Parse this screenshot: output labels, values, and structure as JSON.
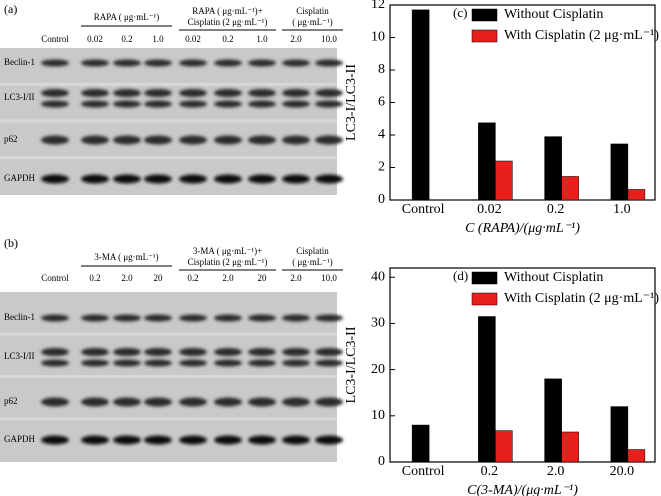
{
  "blots": [
    {
      "label": "(a)",
      "groups": [
        [
          "RAPA ( μg·mL⁻¹)"
        ],
        [
          "RAPA ( μg·mL⁻¹)+",
          "Cisplatin (2 μg·mL⁻¹)"
        ],
        [
          "Cisplatin",
          "( μg·mL⁻¹)"
        ]
      ],
      "lanes": [
        "Control",
        "0.02",
        "0.2",
        "1.0",
        "0.02",
        "0.2",
        "1.0",
        "2.0",
        "10.0"
      ],
      "rows": [
        "Beclin-1",
        "LC3-I/II",
        "p62",
        "GAPDH"
      ]
    },
    {
      "label": "(b)",
      "groups": [
        [
          "3-MA ( μg·mL⁻¹)"
        ],
        [
          "3-MA ( μg·mL⁻¹)+",
          "Cisplatin (2 μg·mL⁻¹)"
        ],
        [
          "Cisplatin",
          "( μg·mL⁻¹)"
        ]
      ],
      "lanes": [
        "Control",
        "0.2",
        "2.0",
        "20",
        "0.2",
        "2.0",
        "20",
        "2.0",
        "10.0"
      ],
      "rows": [
        "Beclin-1",
        "LC3-I/II",
        "p62",
        "GAPDH"
      ]
    }
  ],
  "chart_data": [
    {
      "type": "bar",
      "panel_label": "(c)",
      "ylabel": "LC3-I/LC3-II",
      "xlabel": "C (RAPA)/(μg·mL⁻¹)",
      "categories": [
        "Control",
        "0.02",
        "0.2",
        "1.0"
      ],
      "series": [
        {
          "name": "Without Cisplatin",
          "color": "#000000",
          "values": [
            11.7,
            4.75,
            3.9,
            3.45
          ]
        },
        {
          "name": "With Cisplatin (2 μg·mL⁻¹)",
          "color": "#e8201c",
          "values": [
            null,
            2.4,
            1.45,
            0.65
          ]
        }
      ],
      "ylim": [
        0,
        12
      ],
      "yticks": [
        0,
        2,
        4,
        6,
        8,
        10,
        12
      ]
    },
    {
      "type": "bar",
      "panel_label": "(d)",
      "ylabel": "LC3-I/LC3-II",
      "xlabel": "C(3-MA)/(μg·mL⁻¹)",
      "categories": [
        "Control",
        "0.2",
        "2.0",
        "20.0"
      ],
      "series": [
        {
          "name": "Without Cisplatin",
          "color": "#000000",
          "values": [
            8,
            31.5,
            18,
            12
          ]
        },
        {
          "name": "With Cisplatin (2 μg·mL⁻¹)",
          "color": "#e8201c",
          "values": [
            null,
            6.8,
            6.5,
            2.7
          ]
        }
      ],
      "ylim": [
        0,
        42
      ],
      "yticks": [
        0,
        10,
        20,
        30,
        40
      ]
    }
  ]
}
